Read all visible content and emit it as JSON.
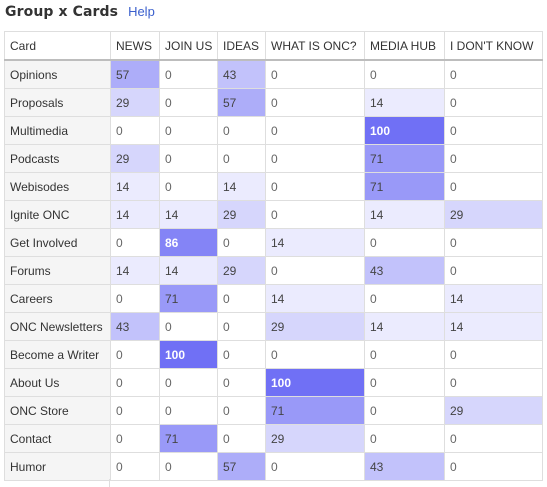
{
  "header": {
    "title": "Group x Cards",
    "help_label": "Help"
  },
  "table": {
    "corner": "Card",
    "columns": [
      "NEWS",
      "JOIN US",
      "IDEAS",
      "WHAT IS ONC?",
      "MEDIA HUB",
      "I DON'T KNOW"
    ],
    "rows": [
      {
        "label": "Opinions",
        "values": [
          57,
          0,
          43,
          0,
          0,
          0
        ]
      },
      {
        "label": "Proposals",
        "values": [
          29,
          0,
          57,
          0,
          14,
          0
        ]
      },
      {
        "label": "Multimedia",
        "values": [
          0,
          0,
          0,
          0,
          100,
          0
        ]
      },
      {
        "label": "Podcasts",
        "values": [
          29,
          0,
          0,
          0,
          71,
          0
        ]
      },
      {
        "label": "Webisodes",
        "values": [
          14,
          0,
          14,
          0,
          71,
          0
        ]
      },
      {
        "label": "Ignite ONC",
        "values": [
          14,
          14,
          29,
          0,
          14,
          29
        ]
      },
      {
        "label": "Get Involved",
        "values": [
          0,
          86,
          0,
          14,
          0,
          0
        ]
      },
      {
        "label": "Forums",
        "values": [
          14,
          14,
          29,
          0,
          43,
          0
        ]
      },
      {
        "label": "Careers",
        "values": [
          0,
          71,
          0,
          14,
          0,
          14
        ]
      },
      {
        "label": "ONC Newsletters",
        "values": [
          43,
          0,
          0,
          29,
          14,
          14
        ]
      },
      {
        "label": "Become a Writer",
        "values": [
          0,
          100,
          0,
          0,
          0,
          0
        ]
      },
      {
        "label": "About Us",
        "values": [
          0,
          0,
          0,
          100,
          0,
          0
        ]
      },
      {
        "label": "ONC Store",
        "values": [
          0,
          0,
          0,
          71,
          0,
          29
        ]
      },
      {
        "label": "Contact",
        "values": [
          0,
          71,
          0,
          29,
          0,
          0
        ]
      },
      {
        "label": "Humor",
        "values": [
          0,
          0,
          57,
          0,
          43,
          0
        ]
      }
    ]
  },
  "colors": {
    "heat_max": "#7070f5",
    "heat_min": "#ffffff",
    "row_label_bg": "#f5f5f5",
    "link": "#3a5fcd"
  }
}
